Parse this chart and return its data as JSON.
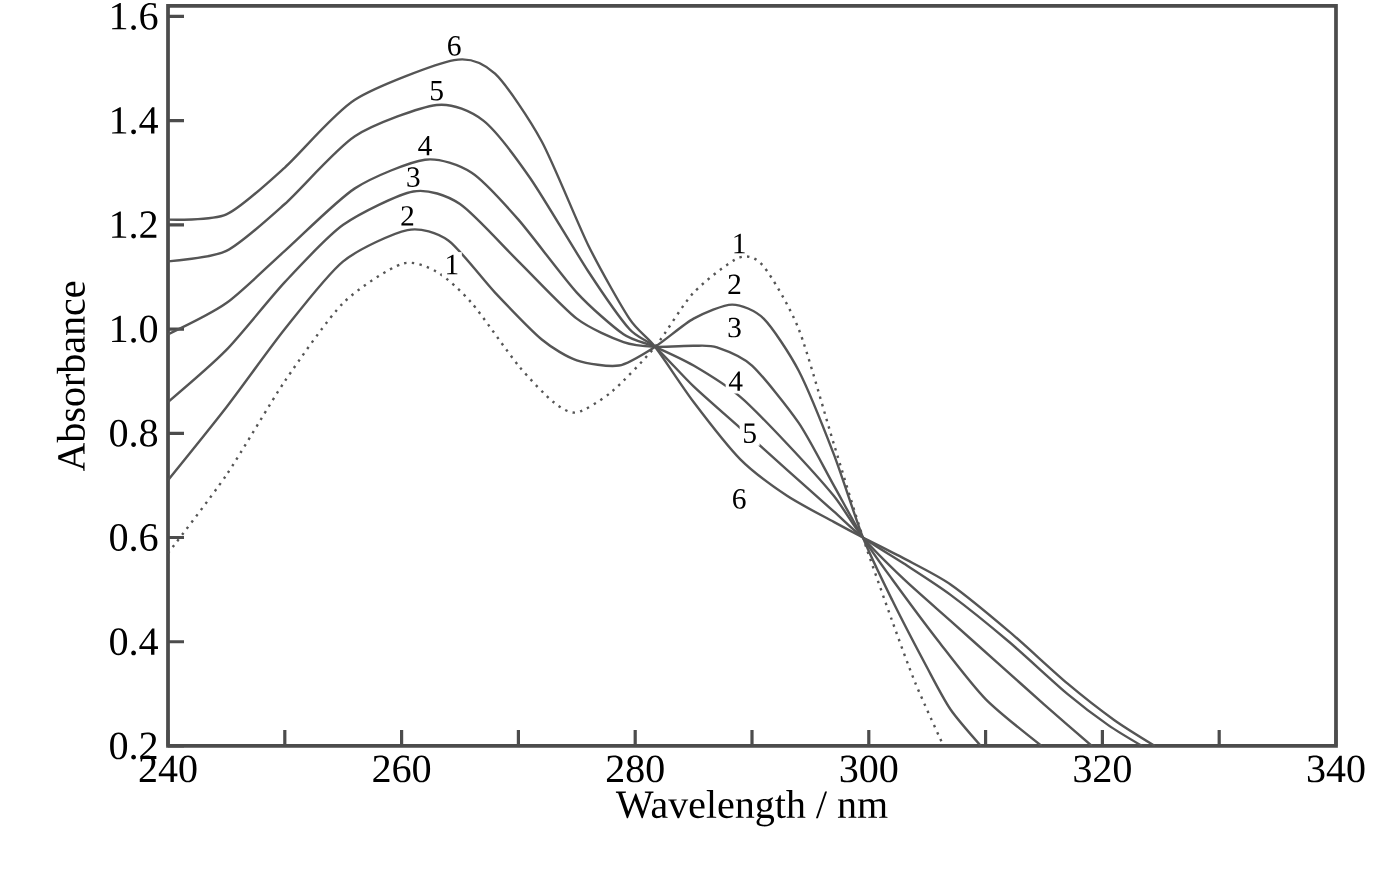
{
  "chart_data": {
    "type": "line",
    "xlabel": "Wavelength / nm",
    "ylabel": "Absorbance",
    "xlim": [
      240,
      340
    ],
    "ylim": [
      0.2,
      1.62
    ],
    "xticks": [
      240,
      260,
      280,
      300,
      320,
      340
    ],
    "yticks": [
      0.2,
      0.4,
      0.6,
      0.8,
      {
        "value": 1.0,
        "label": "1.0"
      },
      1.2,
      1.4,
      1.6
    ],
    "grid": false,
    "legend": false,
    "marker": "none",
    "series": [
      {
        "name": "1",
        "color": "#555555",
        "line_style": "dotted",
        "x": [
          240,
          245,
          250,
          255,
          260,
          263,
          266,
          270,
          273,
          275,
          278,
          281.7,
          285,
          288.9,
          291,
          294,
          297,
          299.5,
          302,
          304,
          306.4
        ],
        "values": [
          0.57,
          0.72,
          0.9,
          1.05,
          1.125,
          1.11,
          1.05,
          0.93,
          0.86,
          0.84,
          0.88,
          0.966,
          1.07,
          1.137,
          1.12,
          1.0,
          0.78,
          0.6,
          0.44,
          0.32,
          0.2
        ]
      },
      {
        "name": "2",
        "color": "#555555",
        "line_style": "solid",
        "x": [
          240,
          245,
          250,
          255,
          260.5,
          264,
          268,
          272,
          275,
          278.6,
          281.7,
          285,
          288.3,
          291,
          294,
          297,
          299.5,
          302,
          305,
          307,
          309.6
        ],
        "values": [
          0.71,
          0.85,
          1.0,
          1.13,
          1.19,
          1.17,
          1.07,
          0.98,
          0.94,
          0.93,
          0.966,
          1.02,
          1.047,
          1.02,
          0.92,
          0.76,
          0.6,
          0.48,
          0.35,
          0.27,
          0.2
        ]
      },
      {
        "name": "3",
        "color": "#555555",
        "line_style": "solid",
        "x": [
          240,
          245,
          250,
          255,
          261,
          265,
          270,
          275,
          279,
          281.7,
          285,
          287,
          290,
          294,
          297,
          299.5,
          302,
          306,
          310,
          314.8
        ],
        "values": [
          0.86,
          0.96,
          1.09,
          1.2,
          1.264,
          1.24,
          1.13,
          1.02,
          0.975,
          0.966,
          0.968,
          0.965,
          0.93,
          0.82,
          0.7,
          0.6,
          0.52,
          0.4,
          0.29,
          0.2
        ]
      },
      {
        "name": "4",
        "color": "#555555",
        "line_style": "solid",
        "x": [
          240,
          245,
          250,
          256,
          262,
          266,
          270,
          275,
          279,
          281.7,
          285,
          289,
          293,
          297,
          299.5,
          303,
          307,
          311,
          315,
          319.1
        ],
        "values": [
          0.99,
          1.05,
          1.15,
          1.27,
          1.325,
          1.3,
          1.21,
          1.07,
          0.99,
          0.966,
          0.93,
          0.87,
          0.78,
          0.68,
          0.6,
          0.52,
          0.44,
          0.36,
          0.28,
          0.2
        ]
      },
      {
        "name": "5",
        "color": "#555555",
        "line_style": "solid",
        "x": [
          240,
          245,
          250,
          256,
          263,
          267,
          271,
          276,
          279.5,
          281.7,
          285,
          289,
          293,
          297,
          299.5,
          303,
          307,
          312,
          317,
          320.5,
          323.4
        ],
        "values": [
          1.13,
          1.15,
          1.24,
          1.37,
          1.43,
          1.4,
          1.29,
          1.11,
          1.0,
          0.966,
          0.89,
          0.81,
          0.73,
          0.65,
          0.6,
          0.55,
          0.49,
          0.4,
          0.3,
          0.24,
          0.2
        ]
      },
      {
        "name": "6",
        "color": "#555555",
        "line_style": "solid",
        "x": [
          240,
          245,
          250,
          256,
          264.5,
          268,
          272,
          276,
          279.5,
          281.7,
          285,
          289,
          293,
          297,
          299.5,
          303,
          307,
          312,
          317,
          321,
          324.5
        ],
        "values": [
          1.21,
          1.22,
          1.31,
          1.44,
          1.516,
          1.49,
          1.36,
          1.16,
          1.02,
          0.966,
          0.86,
          0.75,
          0.68,
          0.63,
          0.6,
          0.56,
          0.51,
          0.42,
          0.32,
          0.25,
          0.2
        ]
      }
    ],
    "annotations": [
      {
        "text": "1",
        "x": 264.3,
        "y": 1.124
      },
      {
        "text": "2",
        "x": 288.5,
        "y": 1.086
      },
      {
        "text": "3",
        "x": 288.5,
        "y": 1.003
      },
      {
        "text": "4",
        "x": 288.6,
        "y": 0.9
      },
      {
        "text": "5",
        "x": 289.8,
        "y": 0.8
      },
      {
        "text": "6",
        "x": 288.9,
        "y": 0.674
      }
    ]
  }
}
